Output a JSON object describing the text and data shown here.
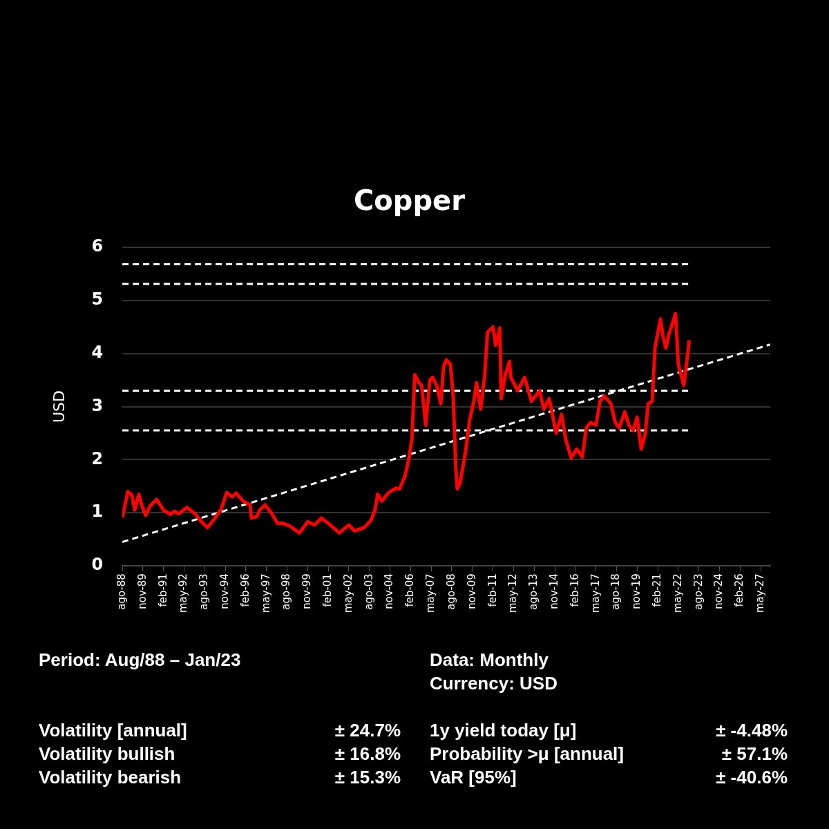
{
  "chart_data": {
    "type": "line",
    "title": "Copper",
    "ylabel": "USD",
    "xlim": [
      "1988-08",
      "2027-12"
    ],
    "xticks": [
      {
        "value": "1988-08",
        "label": "ago-88"
      },
      {
        "value": "1989-11",
        "label": "nov-89"
      },
      {
        "value": "1991-02",
        "label": "feb-91"
      },
      {
        "value": "1992-05",
        "label": "may-92"
      },
      {
        "value": "1993-08",
        "label": "ago-93"
      },
      {
        "value": "1994-11",
        "label": "nov-94"
      },
      {
        "value": "1996-02",
        "label": "feb-96"
      },
      {
        "value": "1997-05",
        "label": "may-97"
      },
      {
        "value": "1998-08",
        "label": "ago-98"
      },
      {
        "value": "1999-11",
        "label": "nov-99"
      },
      {
        "value": "2001-02",
        "label": "feb-01"
      },
      {
        "value": "2002-05",
        "label": "may-02"
      },
      {
        "value": "2003-08",
        "label": "ago-03"
      },
      {
        "value": "2004-11",
        "label": "nov-04"
      },
      {
        "value": "2006-02",
        "label": "feb-06"
      },
      {
        "value": "2007-05",
        "label": "may-07"
      },
      {
        "value": "2008-08",
        "label": "ago-08"
      },
      {
        "value": "2009-11",
        "label": "nov-09"
      },
      {
        "value": "2011-02",
        "label": "feb-11"
      },
      {
        "value": "2012-05",
        "label": "may-12"
      },
      {
        "value": "2013-08",
        "label": "ago-13"
      },
      {
        "value": "2014-11",
        "label": "nov-14"
      },
      {
        "value": "2016-02",
        "label": "feb-16"
      },
      {
        "value": "2017-05",
        "label": "may-17"
      },
      {
        "value": "2018-08",
        "label": "ago-18"
      },
      {
        "value": "2019-11",
        "label": "nov-19"
      },
      {
        "value": "2021-02",
        "label": "feb-21"
      },
      {
        "value": "2022-05",
        "label": "may-22"
      },
      {
        "value": "2023-08",
        "label": "ago-23"
      },
      {
        "value": "2024-11",
        "label": "nov-24"
      },
      {
        "value": "2026-02",
        "label": "feb-26"
      },
      {
        "value": "2027-05",
        "label": "may-27"
      }
    ],
    "ylim": [
      0,
      6
    ],
    "yticks": [
      0,
      1,
      2,
      3,
      4,
      5,
      6
    ],
    "grid": "y",
    "legend": false,
    "marker": "none",
    "series": [
      {
        "color": "#ff0000",
        "line_style": "solid",
        "x": [
          "1988-08",
          "1988-12",
          "1989-03",
          "1989-05",
          "1989-08",
          "1989-10",
          "1990-01",
          "1990-04",
          "1990-09",
          "1991-02",
          "1991-07",
          "1991-10",
          "1992-01",
          "1992-07",
          "1993-01",
          "1993-06",
          "1993-10",
          "1994-03",
          "1994-08",
          "1994-12",
          "1995-04",
          "1995-07",
          "1995-12",
          "1996-05",
          "1996-06",
          "1996-10",
          "1996-12",
          "1997-04",
          "1997-09",
          "1998-01",
          "1998-05",
          "1998-10",
          "1999-05",
          "1999-11",
          "2000-04",
          "2000-09",
          "2001-03",
          "2001-10",
          "2002-05",
          "2002-09",
          "2003-04",
          "2003-09",
          "2003-12",
          "2004-02",
          "2004-05",
          "2004-10",
          "2005-03",
          "2005-06",
          "2005-10",
          "2006-01",
          "2006-03",
          "2006-05",
          "2006-08",
          "2006-10",
          "2007-01",
          "2007-04",
          "2007-06",
          "2007-09",
          "2007-12",
          "2008-02",
          "2008-04",
          "2008-07",
          "2008-09",
          "2008-11",
          "2008-12",
          "2009-02",
          "2009-06",
          "2009-09",
          "2009-12",
          "2010-02",
          "2010-05",
          "2010-08",
          "2010-10",
          "2011-02",
          "2011-04",
          "2011-07",
          "2011-08",
          "2011-11",
          "2012-02",
          "2012-03",
          "2012-08",
          "2013-01",
          "2013-06",
          "2013-12",
          "2014-03",
          "2014-07",
          "2014-12",
          "2015-04",
          "2015-07",
          "2015-11",
          "2016-03",
          "2016-07",
          "2016-10",
          "2017-01",
          "2017-05",
          "2017-08",
          "2017-11",
          "2018-04",
          "2018-07",
          "2018-10",
          "2019-02",
          "2019-05",
          "2019-08",
          "2019-11",
          "2020-02",
          "2020-05",
          "2020-07",
          "2020-10",
          "2020-12",
          "2021-04",
          "2021-06",
          "2021-08",
          "2021-10",
          "2022-03",
          "2022-05",
          "2022-09",
          "2022-10",
          "2023-01"
        ],
        "values": [
          0.91,
          1.4,
          1.33,
          1.05,
          1.35,
          1.15,
          0.95,
          1.12,
          1.25,
          1.05,
          0.97,
          1.03,
          0.98,
          1.1,
          0.98,
          0.82,
          0.72,
          0.88,
          1.07,
          1.38,
          1.3,
          1.37,
          1.22,
          1.15,
          0.9,
          0.93,
          1.05,
          1.15,
          0.98,
          0.8,
          0.8,
          0.75,
          0.62,
          0.83,
          0.77,
          0.9,
          0.78,
          0.62,
          0.77,
          0.66,
          0.72,
          0.85,
          1.05,
          1.35,
          1.22,
          1.38,
          1.46,
          1.45,
          1.7,
          2.05,
          2.4,
          3.6,
          3.45,
          3.4,
          2.65,
          3.5,
          3.55,
          3.4,
          3.05,
          3.75,
          3.88,
          3.8,
          3.2,
          1.8,
          1.45,
          1.55,
          2.15,
          2.75,
          3.1,
          3.45,
          2.95,
          3.6,
          4.4,
          4.5,
          4.15,
          4.48,
          3.15,
          3.6,
          3.85,
          3.55,
          3.3,
          3.55,
          3.1,
          3.3,
          2.95,
          3.15,
          2.5,
          2.85,
          2.38,
          2.03,
          2.2,
          2.05,
          2.6,
          2.7,
          2.65,
          3.1,
          3.2,
          3.05,
          2.7,
          2.6,
          2.9,
          2.65,
          2.55,
          2.8,
          2.2,
          2.5,
          3.05,
          3.1,
          4.1,
          4.65,
          4.3,
          4.1,
          4.35,
          4.75,
          3.8,
          3.4,
          3.6,
          4.25
        ]
      },
      {
        "color": "#ffffff",
        "line_style": "dashed",
        "x": [
          "1988-08",
          "2027-12"
        ],
        "values": [
          0.45,
          4.17
        ]
      },
      {
        "color": "#ffffff",
        "line_style": "dashed",
        "x": [
          "1988-08",
          "2023-01"
        ],
        "values": [
          5.68,
          5.68
        ]
      },
      {
        "color": "#ffffff",
        "line_style": "dashed",
        "x": [
          "1988-08",
          "2023-01"
        ],
        "values": [
          5.31,
          5.31
        ]
      },
      {
        "color": "#ffffff",
        "line_style": "dashed",
        "x": [
          "1988-08",
          "2023-01"
        ],
        "values": [
          3.3,
          3.3
        ]
      },
      {
        "color": "#ffffff",
        "line_style": "dashed",
        "x": [
          "1988-08",
          "2023-01"
        ],
        "values": [
          2.55,
          2.55
        ]
      }
    ],
    "annotations": [
      "Period: Aug/88 – Jan/23",
      "Data: Monthly",
      "Currency: USD",
      "Volatility [annual]",
      "± 24.7%",
      "1y yield today [μ]",
      "± -4.48%",
      "Volatility bullish",
      "± 16.8%",
      "Probability >μ [annual]",
      "± 57.1%",
      "Volatility bearish",
      "± 15.3%",
      "VaR [95%]",
      "± -40.6%"
    ]
  }
}
